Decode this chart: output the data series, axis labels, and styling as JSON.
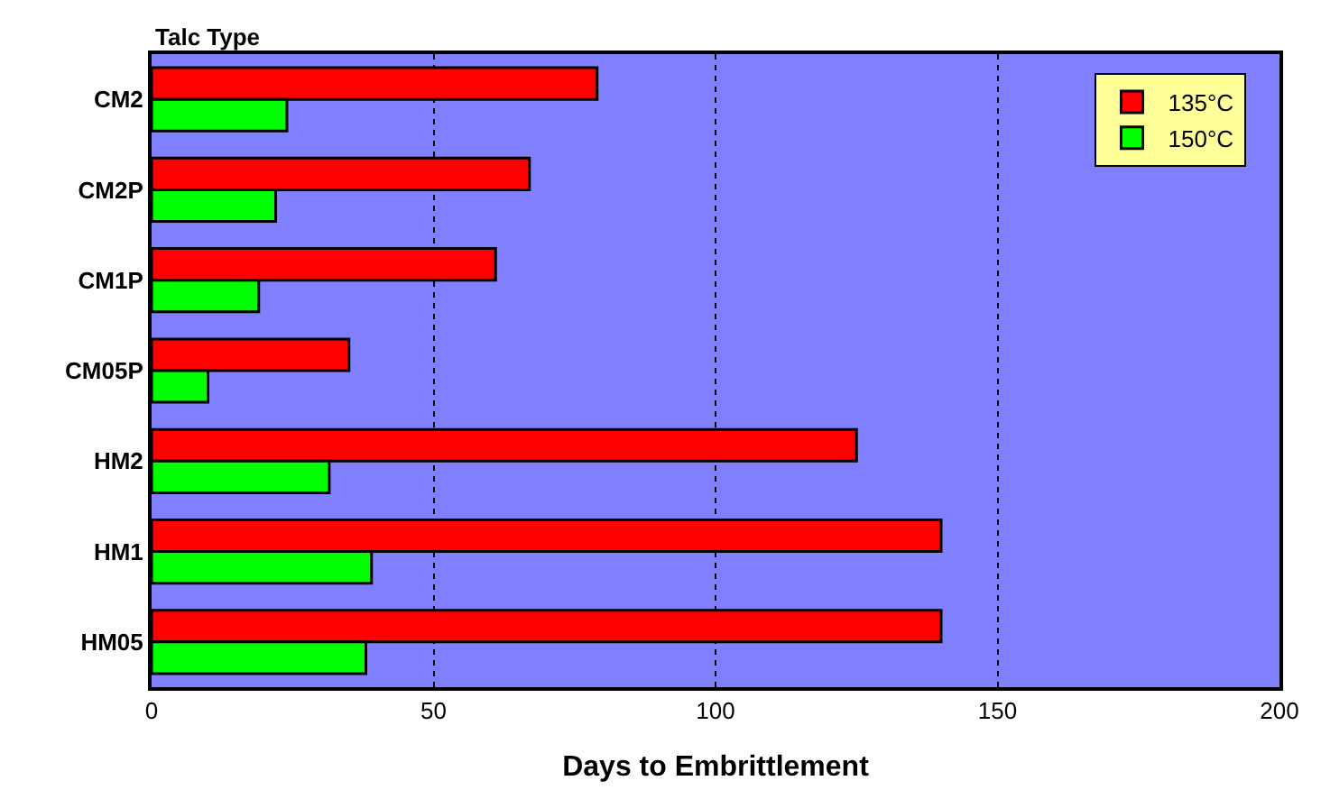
{
  "chart_data": {
    "type": "bar",
    "orientation": "horizontal",
    "categories": [
      "CM2",
      "CM2P",
      "CM1P",
      "CM05P",
      "HM2",
      "HM1",
      "HM05"
    ],
    "series": [
      {
        "name": "135°C",
        "color": "#ff0000",
        "values": [
          79,
          67,
          61,
          35,
          125,
          140,
          140
        ]
      },
      {
        "name": "150°C",
        "color": "#00ff00",
        "values": [
          24,
          22,
          19,
          10,
          31.5,
          39,
          38
        ]
      }
    ],
    "xlabel": "Days to Embrittlement",
    "ylabel": "Talc Type",
    "xlim": [
      0,
      200
    ],
    "xticks": [
      0,
      50,
      100,
      150,
      200
    ],
    "grid": "x",
    "legend": "top right"
  }
}
